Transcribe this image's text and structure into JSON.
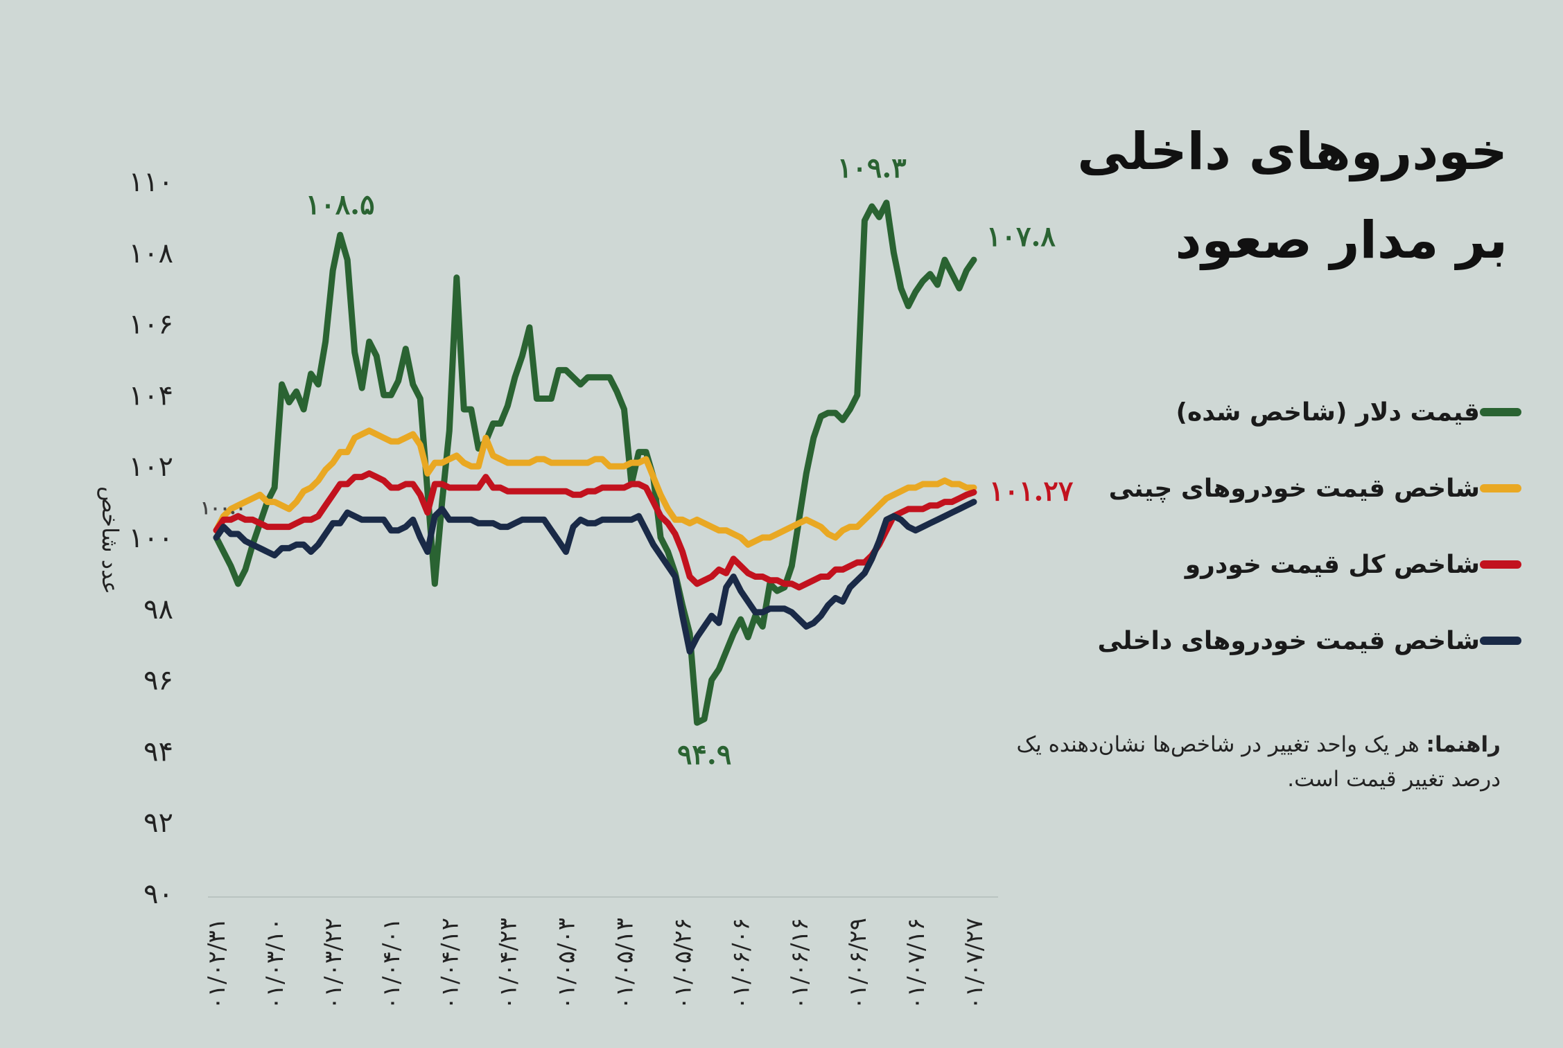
{
  "title": {
    "line1": "خودروهای داخلی",
    "line2": "بر مدار صعود"
  },
  "note": {
    "label": "راهنما:",
    "text": "هر یک واحد تغییر در شاخص‌ها نشان‌دهنده یک درصد تغییر قیمت است."
  },
  "chart_data": {
    "type": "line",
    "ylabel": "عدد شاخص",
    "ylim": [
      90,
      110
    ],
    "yticks": [
      "۹۰",
      "۹۲",
      "۹۴",
      "۹۶",
      "۹۸",
      "۱۰۰",
      "۱۰۲",
      "۱۰۴",
      "۱۰۶",
      "۱۰۸",
      "۱۱۰"
    ],
    "ytick_values": [
      90,
      92,
      94,
      96,
      98,
      100,
      102,
      104,
      106,
      108,
      110
    ],
    "xticks": [
      "۰۱/۰۲/۳۱",
      "۰۱/۰۳/۱۰",
      "۰۱/۰۳/۲۲",
      "۰۱/۰۴/۰۱",
      "۰۱/۰۴/۱۲",
      "۰۱/۰۴/۲۳",
      "۰۱/۰۵/۰۳",
      "۰۱/۰۵/۱۳",
      "۰۱/۰۵/۲۶",
      "۰۱/۰۶/۰۶",
      "۰۱/۰۶/۱۶",
      "۰۱/۰۶/۲۹",
      "۰۱/۰۷/۱۶",
      "۰۱/۰۷/۲۷"
    ],
    "series": [
      {
        "name": "قیمت دلار (شاخص شده)",
        "color": "#2a6332",
        "values": [
          100,
          99.6,
          99.2,
          98.7,
          99.1,
          99.8,
          100.4,
          101.0,
          101.4,
          104.3,
          103.8,
          104.1,
          103.6,
          104.6,
          104.3,
          105.5,
          107.5,
          108.5,
          107.8,
          105.2,
          104.2,
          105.5,
          105.1,
          104.0,
          104.0,
          104.4,
          105.3,
          104.3,
          103.9,
          101.3,
          98.7,
          101.0,
          103.0,
          107.3,
          103.6,
          103.6,
          102.5,
          102.7,
          103.2,
          103.2,
          103.7,
          104.5,
          105.1,
          105.9,
          103.9,
          103.9,
          103.9,
          104.7,
          104.7,
          104.5,
          104.3,
          104.5,
          104.5,
          104.5,
          104.5,
          104.1,
          103.6,
          101.5,
          102.4,
          102.4,
          101.7,
          100.0,
          99.6,
          99.0,
          98.1,
          97.3,
          94.8,
          94.9,
          96.0,
          96.3,
          96.8,
          97.3,
          97.7,
          97.2,
          97.8,
          97.5,
          98.7,
          98.5,
          98.6,
          99.2,
          100.5,
          101.8,
          102.8,
          103.4,
          103.5,
          103.5,
          103.3,
          103.6,
          104.0,
          108.9,
          109.3,
          109.0,
          109.4,
          108.0,
          107.0,
          106.5,
          106.9,
          107.2,
          107.4,
          107.1,
          107.8,
          107.4,
          107.0,
          107.5,
          107.8
        ]
      },
      {
        "name": "شاخص قیمت خودروهای چینی",
        "color": "#e9a823",
        "values": [
          100.2,
          100.6,
          100.8,
          100.9,
          101.0,
          101.1,
          101.2,
          101.0,
          101.0,
          100.9,
          100.8,
          101.0,
          101.3,
          101.4,
          101.6,
          101.9,
          102.1,
          102.4,
          102.4,
          102.8,
          102.9,
          103.0,
          102.9,
          102.8,
          102.7,
          102.7,
          102.8,
          102.9,
          102.6,
          101.8,
          102.1,
          102.1,
          102.2,
          102.3,
          102.1,
          102.0,
          102.0,
          102.8,
          102.3,
          102.2,
          102.1,
          102.1,
          102.1,
          102.1,
          102.2,
          102.2,
          102.1,
          102.1,
          102.1,
          102.1,
          102.1,
          102.1,
          102.2,
          102.2,
          102.0,
          102.0,
          102.0,
          102.1,
          102.1,
          102.2,
          101.7,
          101.2,
          100.8,
          100.5,
          100.5,
          100.4,
          100.5,
          100.4,
          100.3,
          100.2,
          100.2,
          100.1,
          100.0,
          99.8,
          99.9,
          100.0,
          100.0,
          100.1,
          100.2,
          100.3,
          100.4,
          100.5,
          100.4,
          100.3,
          100.1,
          100.0,
          100.2,
          100.3,
          100.3,
          100.5,
          100.7,
          100.9,
          101.1,
          101.2,
          101.3,
          101.4,
          101.4,
          101.5,
          101.5,
          101.5,
          101.6,
          101.5,
          101.5,
          101.4,
          101.4
        ]
      },
      {
        "name": "شاخص کل قیمت خودرو",
        "color": "#c2121e",
        "values": [
          100.2,
          100.5,
          100.5,
          100.6,
          100.5,
          100.5,
          100.4,
          100.3,
          100.3,
          100.3,
          100.3,
          100.4,
          100.5,
          100.5,
          100.6,
          100.9,
          101.2,
          101.5,
          101.5,
          101.7,
          101.7,
          101.8,
          101.7,
          101.6,
          101.4,
          101.4,
          101.5,
          101.5,
          101.2,
          100.7,
          101.5,
          101.5,
          101.4,
          101.4,
          101.4,
          101.4,
          101.4,
          101.7,
          101.4,
          101.4,
          101.3,
          101.3,
          101.3,
          101.3,
          101.3,
          101.3,
          101.3,
          101.3,
          101.3,
          101.2,
          101.2,
          101.3,
          101.3,
          101.4,
          101.4,
          101.4,
          101.4,
          101.5,
          101.5,
          101.4,
          101.0,
          100.6,
          100.4,
          100.1,
          99.6,
          98.9,
          98.7,
          98.8,
          98.9,
          99.1,
          99.0,
          99.4,
          99.2,
          99.0,
          98.9,
          98.9,
          98.8,
          98.8,
          98.7,
          98.7,
          98.6,
          98.7,
          98.8,
          98.9,
          98.9,
          99.1,
          99.1,
          99.2,
          99.3,
          99.3,
          99.5,
          99.8,
          100.2,
          100.6,
          100.7,
          100.8,
          100.8,
          100.8,
          100.9,
          100.9,
          101.0,
          101.0,
          101.1,
          101.2,
          101.27
        ]
      },
      {
        "name": "شاخص قیمت خودروهای داخلی",
        "color": "#1a2a47",
        "values": [
          100.0,
          100.3,
          100.1,
          100.1,
          99.9,
          99.8,
          99.7,
          99.6,
          99.5,
          99.7,
          99.7,
          99.8,
          99.8,
          99.6,
          99.8,
          100.1,
          100.4,
          100.4,
          100.7,
          100.6,
          100.5,
          100.5,
          100.5,
          100.5,
          100.2,
          100.2,
          100.3,
          100.5,
          100.0,
          99.6,
          100.6,
          100.8,
          100.5,
          100.5,
          100.5,
          100.5,
          100.4,
          100.4,
          100.4,
          100.3,
          100.3,
          100.4,
          100.5,
          100.5,
          100.5,
          100.5,
          100.2,
          99.9,
          99.6,
          100.3,
          100.5,
          100.4,
          100.4,
          100.5,
          100.5,
          100.5,
          100.5,
          100.5,
          100.6,
          100.2,
          99.8,
          99.5,
          99.2,
          98.9,
          97.8,
          96.8,
          97.2,
          97.5,
          97.8,
          97.6,
          98.6,
          98.9,
          98.5,
          98.2,
          97.9,
          97.9,
          98.0,
          98.0,
          98.0,
          97.9,
          97.7,
          97.5,
          97.6,
          97.8,
          98.1,
          98.3,
          98.2,
          98.6,
          98.8,
          99.0,
          99.4,
          99.9,
          100.5,
          100.6,
          100.5,
          100.3,
          100.2,
          100.3,
          100.4,
          100.5,
          100.6,
          100.7,
          100.8,
          100.9,
          101.0
        ]
      }
    ],
    "annotations": [
      {
        "text": "۱۰۸.۵",
        "series": 0,
        "index": 17
      },
      {
        "text": "۱۰۹.۳",
        "series": 0,
        "index": 90
      },
      {
        "text": "۱۰۷.۸",
        "series": 0,
        "index": 104
      },
      {
        "text": "۹۴.۹",
        "series": 0,
        "index": 67
      },
      {
        "text": "۱۰۱.۲۷",
        "series": 2,
        "index": 104
      },
      {
        "text": "۱۰۰.۰",
        "series": 3,
        "index": 0
      }
    ]
  }
}
